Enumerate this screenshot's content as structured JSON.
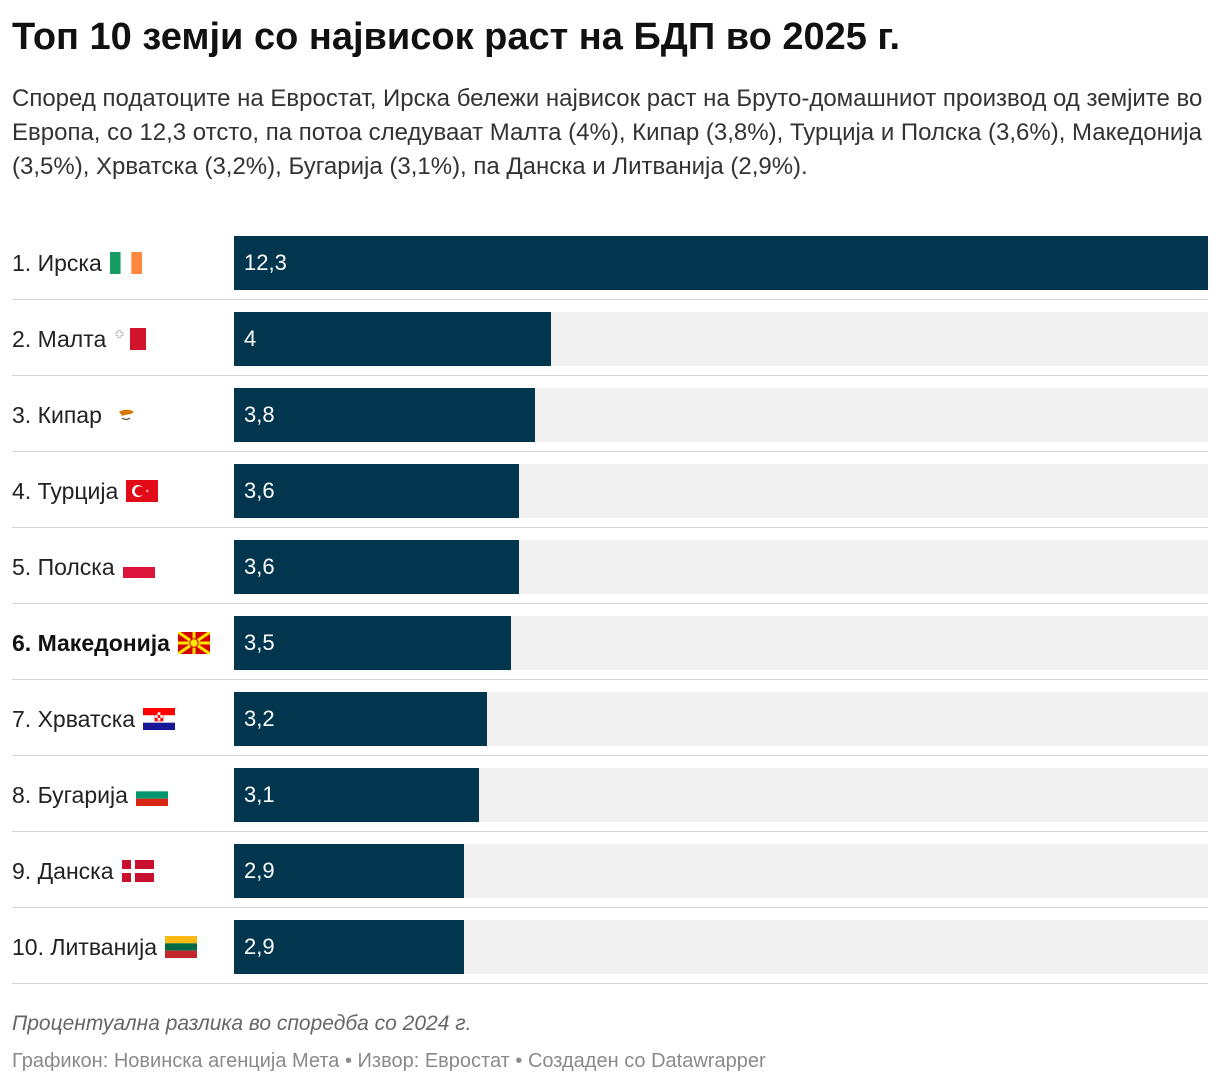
{
  "header": {
    "title": "Топ 10 земји со највисок раст на БДП во 2025 г.",
    "subtitle": "Според податоците на Евростат, Ирска бележи највисок раст на Бруто-домашниот производ од земјите во Европа, со 12,3 отсто, па потоа следуваат Малта (4%), Кипар (3,8%), Турција и Полска (3,6%), Македонија (3,5%), Хрватска (3,2%), Бугарија (3,1%), па Данска и Литванија (2,9%)."
  },
  "chart_data": {
    "type": "bar",
    "orientation": "horizontal",
    "xlim": [
      0,
      12.3
    ],
    "categories": [
      "1. Ирска",
      "2. Малта",
      "3. Кипар",
      "4. Турција",
      "5. Полска",
      "6. Македонија",
      "7. Хрватска",
      "8. Бугарија",
      "9. Данска",
      "10. Литванија"
    ],
    "values": [
      12.3,
      4,
      3.8,
      3.6,
      3.6,
      3.5,
      3.2,
      3.1,
      2.9,
      2.9
    ],
    "value_labels": [
      "12,3",
      "4",
      "3,8",
      "3,6",
      "3,6",
      "3,5",
      "3,2",
      "3,1",
      "2,9",
      "2,9"
    ],
    "highlighted_category": "6. Македонија",
    "flags": [
      "ireland-flag-icon",
      "malta-flag-icon",
      "cyprus-flag-icon",
      "turkey-flag-icon",
      "poland-flag-icon",
      "macedonia-flag-icon",
      "croatia-flag-icon",
      "bulgaria-flag-icon",
      "denmark-flag-icon",
      "lithuania-flag-icon"
    ],
    "bar_color": "#02364f",
    "track_color": "#f1f1f1"
  },
  "notes": {
    "description": "Процентуална разлика во споредба со 2024 г.",
    "footer": "Графикон: Новинска агенција Мета • Извор: Евростат • Создаден со Datawrapper"
  }
}
